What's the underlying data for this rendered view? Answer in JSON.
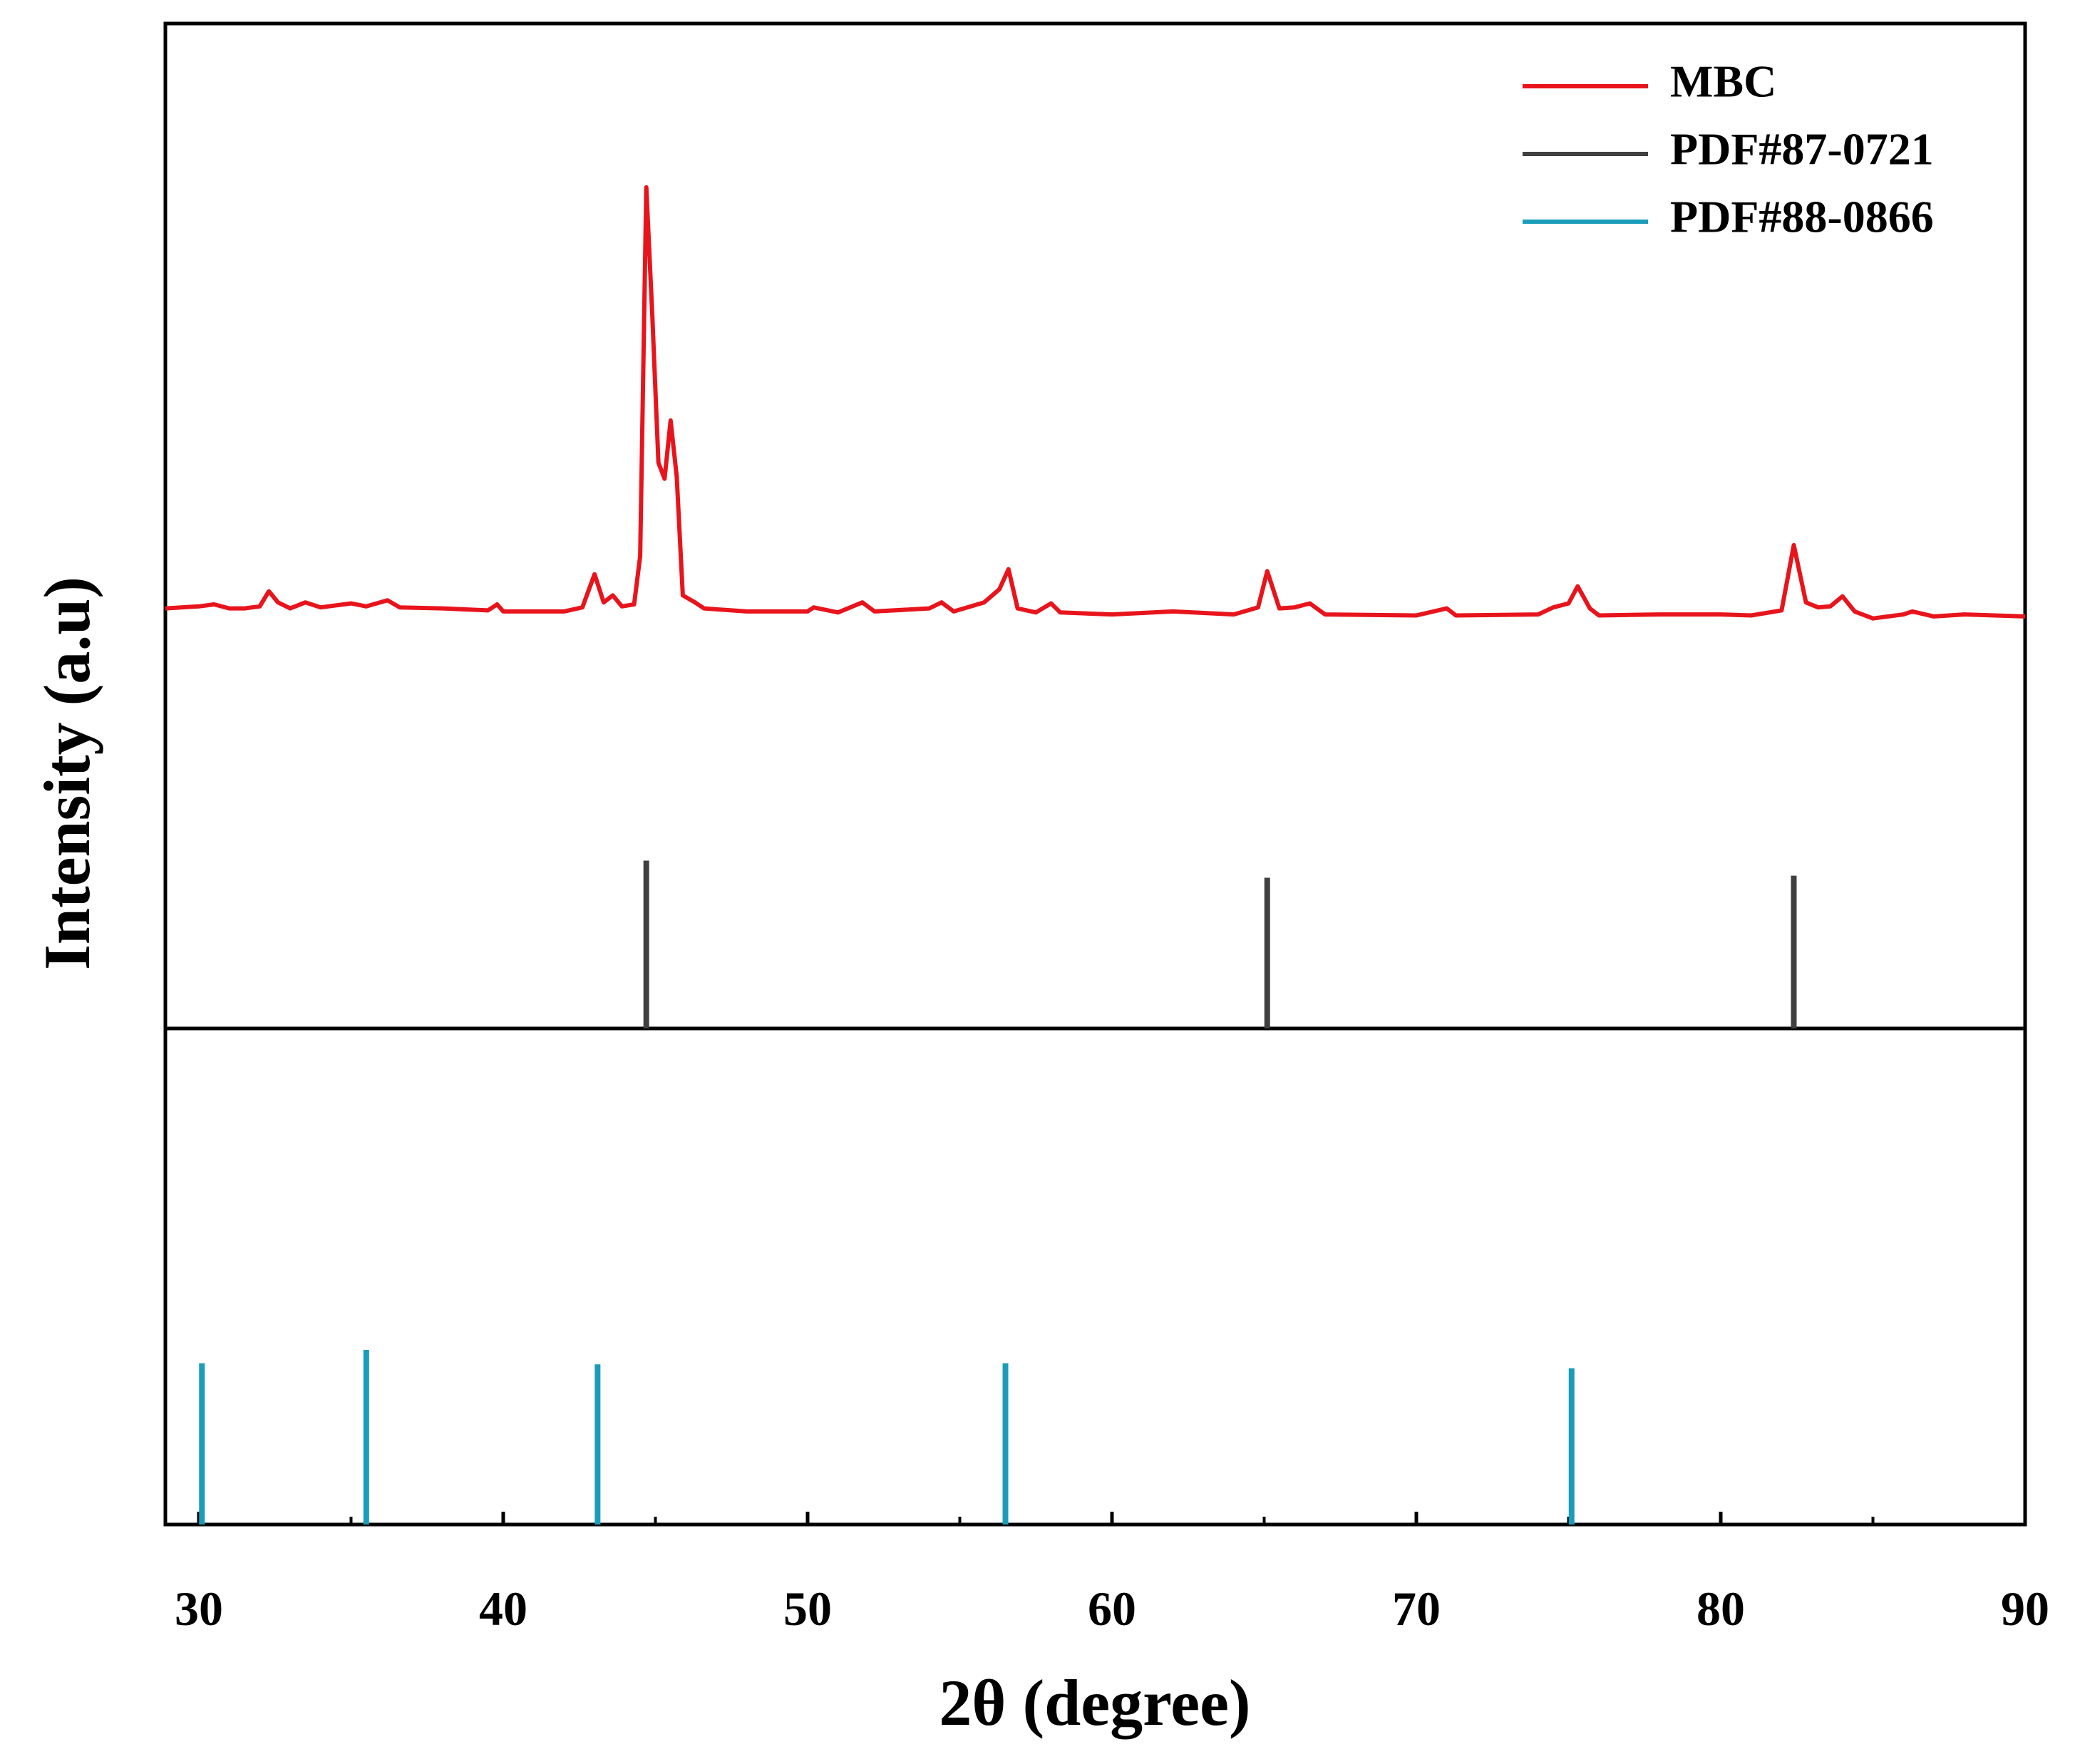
{
  "chart_data": [
    {
      "type": "line",
      "ylabel": "Intensity (a.u)",
      "xlim": [
        28.9,
        90
      ],
      "ylim": [
        0,
        100
      ],
      "series": [
        {
          "name": "MBC",
          "color": "#e8141c",
          "x": [
            28.9,
            30,
            30.5,
            31,
            31.5,
            32,
            32.3,
            32.6,
            33,
            33.5,
            34,
            35,
            35.5,
            36.2,
            36.6,
            38,
            39.5,
            39.8,
            40,
            42,
            42.6,
            43,
            43.3,
            43.6,
            43.9,
            44.3,
            44.5,
            44.7,
            44.9,
            45.1,
            45.3,
            45.5,
            45.7,
            45.9,
            46.3,
            46.6,
            48,
            50,
            50.2,
            51,
            51.8,
            52.2,
            54,
            54.4,
            54.8,
            55.8,
            56.3,
            56.6,
            56.9,
            57.5,
            58,
            58.3,
            60,
            62,
            64,
            64.8,
            65.1,
            65.5,
            66,
            66.5,
            67,
            70,
            71,
            71.3,
            74,
            74.5,
            75,
            75.3,
            75.7,
            76,
            78,
            80,
            81,
            82,
            82.4,
            82.8,
            83.2,
            83.6,
            84,
            84.4,
            85,
            86,
            86.3,
            87,
            88,
            89,
            90
          ],
          "values": [
            41.8,
            42.0,
            42.2,
            41.8,
            41.8,
            42.0,
            43.5,
            42.4,
            41.8,
            42.4,
            41.9,
            42.3,
            42.0,
            42.6,
            41.9,
            41.8,
            41.6,
            42.2,
            41.5,
            41.5,
            41.9,
            45.2,
            42.4,
            43.1,
            42.0,
            42.2,
            47.0,
            83.7,
            70.8,
            56.3,
            54.7,
            60.5,
            54.9,
            43.1,
            42.4,
            41.8,
            41.5,
            41.5,
            41.9,
            41.4,
            42.4,
            41.5,
            41.8,
            42.4,
            41.5,
            42.4,
            43.7,
            45.7,
            41.8,
            41.4,
            42.3,
            41.4,
            41.2,
            41.5,
            41.2,
            41.9,
            45.5,
            41.8,
            41.9,
            42.3,
            41.2,
            41.1,
            41.8,
            41.1,
            41.2,
            41.9,
            42.3,
            44.0,
            41.8,
            41.1,
            41.2,
            41.2,
            41.1,
            41.6,
            48.1,
            42.4,
            41.9,
            42.0,
            43.0,
            41.5,
            40.8,
            41.2,
            41.5,
            41.0,
            41.2,
            41.1,
            41.0
          ]
        }
      ]
    },
    {
      "type": "stick",
      "xlim": [
        28.9,
        90
      ],
      "ylim": [
        0,
        100
      ],
      "series": [
        {
          "name": "PDF#87-0721",
          "color": "#404040",
          "x": [
            44.7,
            65.1,
            82.4
          ],
          "values": [
            16.7,
            15.0,
            15.2
          ]
        }
      ]
    },
    {
      "type": "stick",
      "xlabel": "2θ (degree)",
      "xlim": [
        28.9,
        90
      ],
      "ylim": [
        0,
        100
      ],
      "xticks": [
        30,
        40,
        50,
        60,
        70,
        80,
        90
      ],
      "xminorticks": [
        35,
        45,
        55,
        65,
        75,
        85
      ],
      "series": [
        {
          "name": "PDF#88-0866",
          "color": "#1a9dbb",
          "x": [
            30.1,
            35.5,
            43.1,
            56.5,
            75.1
          ],
          "values": [
            32.5,
            35.2,
            32.3,
            32.5,
            31.5
          ]
        }
      ]
    }
  ]
}
